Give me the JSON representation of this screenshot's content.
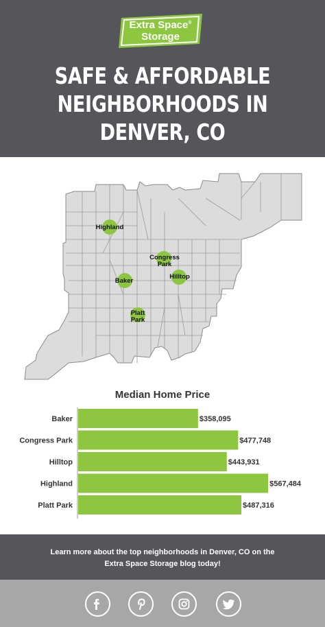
{
  "brand": {
    "line1": "Extra Space",
    "line2": "Storage",
    "registered": "®",
    "colors": {
      "green": "#8dc63f",
      "dark": "#55565b"
    }
  },
  "headline": {
    "line1": "SAFE & AFFORDABLE",
    "line2": "NEIGHBORHOODS IN",
    "line3": "DENVER, CO"
  },
  "map": {
    "pins": [
      {
        "label": "Highland",
        "color": "#8dc63f"
      },
      {
        "label": "Congress Park",
        "color": "#8dc63f"
      },
      {
        "label": "Baker",
        "color": "#8dc63f"
      },
      {
        "label": "Hilltop",
        "color": "#8dc63f"
      },
      {
        "label": "Platt Park",
        "color": "#8dc63f"
      }
    ]
  },
  "chart_data": {
    "type": "bar",
    "orientation": "horizontal",
    "title": "Median Home Price",
    "categories": [
      "Baker",
      "Congress Park",
      "Hilltop",
      "Highland",
      "Platt Park"
    ],
    "values": [
      358095,
      477748,
      443931,
      567484,
      487316
    ],
    "value_labels": [
      "$358,095",
      "$477,748",
      "$443,931",
      "$567,484",
      "$487,316"
    ],
    "bar_color": "#8dc63f",
    "xlim": [
      0,
      600000
    ],
    "grid": false
  },
  "footer": {
    "line1": "Learn more about the top neighborhoods in Denver, CO on the",
    "line2": "Extra Space Storage blog today!"
  },
  "social": [
    {
      "name": "facebook-icon",
      "glyph": "f"
    },
    {
      "name": "pinterest-icon",
      "glyph": "P"
    },
    {
      "name": "instagram-icon",
      "glyph": "ig"
    },
    {
      "name": "twitter-icon",
      "glyph": "bird"
    }
  ]
}
